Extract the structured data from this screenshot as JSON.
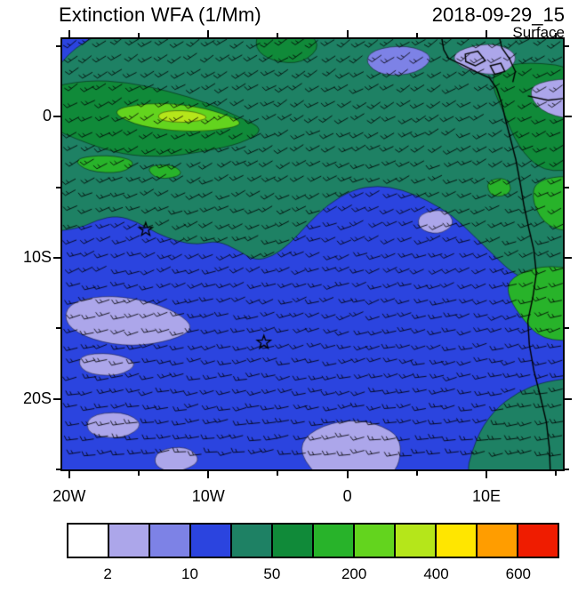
{
  "header": {
    "title": "Extinction WFA (1/Mm)",
    "datetime": "2018-09-29_15",
    "level": "Surface"
  },
  "chart_data": {
    "type": "filled_contour_map",
    "title": "Extinction WFA (1/Mm)",
    "datetime": "2018-09-29_15",
    "level": "Surface",
    "variable": "Extinction WFA",
    "units": "1/Mm",
    "geo": {
      "lon_min": -20.5,
      "lon_max": 15.5,
      "lat_min": -25,
      "lat_max": 5.5
    },
    "axes": {
      "x_ticks": [
        {
          "label": "20W",
          "lon": -20
        },
        {
          "label": "10W",
          "lon": -10
        },
        {
          "label": "0",
          "lon": 0
        },
        {
          "label": "10E",
          "lon": 10
        }
      ],
      "x_minor_lons": [
        -15,
        -5,
        5,
        15
      ],
      "y_ticks": [
        {
          "label": "0",
          "lat": 0
        },
        {
          "label": "10S",
          "lat": -10
        },
        {
          "label": "20S",
          "lat": -20
        }
      ],
      "y_minor_lats": [
        5,
        -5,
        -15,
        -25
      ]
    },
    "palette": [
      "#ffffff",
      "#aca6ea",
      "#7d82e6",
      "#2b44df",
      "#1e8164",
      "#108a39",
      "#28b32a",
      "#63d41e",
      "#b5e61a",
      "#ffe600",
      "#ff9d00",
      "#ef1c00"
    ],
    "background_color": 3,
    "colorbar": {
      "colors": [
        "#ffffff",
        "#aca6ea",
        "#7d82e6",
        "#2b44df",
        "#1e8164",
        "#108a39",
        "#28b32a",
        "#63d41e",
        "#b5e61a",
        "#ffe600",
        "#ff9d00",
        "#ef1c00"
      ],
      "labels": [
        {
          "text": "2",
          "boundary": 1
        },
        {
          "text": "10",
          "boundary": 3
        },
        {
          "text": "50",
          "boundary": 5
        },
        {
          "text": "200",
          "boundary": 7
        },
        {
          "text": "400",
          "boundary": 9
        },
        {
          "text": "600",
          "boundary": 11
        }
      ]
    },
    "field_regions": [
      {
        "name": "teal-north-band",
        "color": 4,
        "pts": [
          [
            -0.04,
            -0.04
          ],
          [
            0.5,
            -0.04
          ],
          [
            1.04,
            -0.04
          ],
          [
            1.04,
            0.12
          ],
          [
            0.98,
            0.16
          ],
          [
            1.04,
            0.28
          ],
          [
            1.04,
            0.57
          ],
          [
            0.95,
            0.57
          ],
          [
            0.9,
            0.545
          ],
          [
            0.86,
            0.5
          ],
          [
            0.82,
            0.455
          ],
          [
            0.78,
            0.41
          ],
          [
            0.73,
            0.375
          ],
          [
            0.68,
            0.35
          ],
          [
            0.63,
            0.34
          ],
          [
            0.58,
            0.35
          ],
          [
            0.53,
            0.385
          ],
          [
            0.49,
            0.43
          ],
          [
            0.455,
            0.475
          ],
          [
            0.42,
            0.505
          ],
          [
            0.385,
            0.515
          ],
          [
            0.35,
            0.49
          ],
          [
            0.31,
            0.468
          ],
          [
            0.27,
            0.478
          ],
          [
            0.23,
            0.47
          ],
          [
            0.19,
            0.452
          ],
          [
            0.15,
            0.425
          ],
          [
            0.11,
            0.41
          ],
          [
            0.07,
            0.42
          ],
          [
            0.035,
            0.44
          ],
          [
            -0.04,
            0.45
          ]
        ]
      },
      {
        "name": "teal-bottom-right",
        "color": 4,
        "pts": [
          [
            0.8,
            1.04
          ],
          [
            0.825,
            0.93
          ],
          [
            0.86,
            0.865
          ],
          [
            0.91,
            0.82
          ],
          [
            0.965,
            0.795
          ],
          [
            1.04,
            0.785
          ],
          [
            1.04,
            1.04
          ]
        ]
      },
      {
        "name": "green-topleft",
        "color": 5,
        "pts": [
          [
            -0.04,
            0.115
          ],
          [
            0.05,
            0.095
          ],
          [
            0.13,
            0.1
          ],
          [
            0.21,
            0.12
          ],
          [
            0.29,
            0.148
          ],
          [
            0.355,
            0.182
          ],
          [
            0.405,
            0.21
          ],
          [
            0.36,
            0.242
          ],
          [
            0.28,
            0.262
          ],
          [
            0.2,
            0.275
          ],
          [
            0.12,
            0.268
          ],
          [
            0.05,
            0.243
          ],
          [
            -0.04,
            0.198
          ]
        ]
      },
      {
        "name": "bright-green-streak",
        "color": 7,
        "pts": [
          [
            0.095,
            0.165
          ],
          [
            0.17,
            0.148
          ],
          [
            0.25,
            0.152
          ],
          [
            0.32,
            0.172
          ],
          [
            0.368,
            0.198
          ],
          [
            0.3,
            0.214
          ],
          [
            0.22,
            0.214
          ],
          [
            0.14,
            0.198
          ]
        ]
      },
      {
        "name": "streak-core",
        "color": 8,
        "pts": [
          [
            0.195,
            0.168
          ],
          [
            0.255,
            0.165
          ],
          [
            0.3,
            0.183
          ],
          [
            0.245,
            0.196
          ],
          [
            0.19,
            0.188
          ]
        ]
      },
      {
        "name": "green-patch-a",
        "color": 6,
        "pts": [
          [
            0.02,
            0.278
          ],
          [
            0.09,
            0.268
          ],
          [
            0.15,
            0.283
          ],
          [
            0.122,
            0.312
          ],
          [
            0.05,
            0.308
          ]
        ]
      },
      {
        "name": "green-patch-b",
        "color": 6,
        "pts": [
          [
            0.165,
            0.296
          ],
          [
            0.22,
            0.29
          ],
          [
            0.245,
            0.316
          ],
          [
            0.19,
            0.328
          ]
        ]
      },
      {
        "name": "green-top-center",
        "color": 5,
        "pts": [
          [
            0.395,
            -0.03
          ],
          [
            0.47,
            -0.03
          ],
          [
            0.52,
            0.012
          ],
          [
            0.48,
            0.057
          ],
          [
            0.42,
            0.052
          ],
          [
            0.383,
            0.022
          ]
        ]
      },
      {
        "name": "green-coast-north",
        "color": 5,
        "pts": [
          [
            0.865,
            0.068
          ],
          [
            0.93,
            0.052
          ],
          [
            1.04,
            0.068
          ],
          [
            1.04,
            0.3
          ],
          [
            0.96,
            0.31
          ],
          [
            0.91,
            0.25
          ],
          [
            0.882,
            0.17
          ],
          [
            0.858,
            0.11
          ]
        ]
      },
      {
        "name": "green-coast-mid",
        "color": 6,
        "pts": [
          [
            0.945,
            0.325
          ],
          [
            1.04,
            0.315
          ],
          [
            1.04,
            0.45
          ],
          [
            0.97,
            0.44
          ],
          [
            0.938,
            0.38
          ]
        ]
      },
      {
        "name": "green-coast-south",
        "color": 6,
        "pts": [
          [
            0.895,
            0.555
          ],
          [
            0.955,
            0.525
          ],
          [
            1.04,
            0.535
          ],
          [
            1.04,
            0.7
          ],
          [
            0.958,
            0.7
          ],
          [
            0.912,
            0.64
          ],
          [
            0.888,
            0.59
          ]
        ]
      },
      {
        "name": "green-spot",
        "color": 6,
        "pts": [
          [
            0.845,
            0.33
          ],
          [
            0.888,
            0.32
          ],
          [
            0.9,
            0.358
          ],
          [
            0.858,
            0.37
          ]
        ]
      },
      {
        "name": "lavender-lowerleft-a",
        "color": 1,
        "pts": [
          [
            0.01,
            0.615
          ],
          [
            0.08,
            0.595
          ],
          [
            0.16,
            0.605
          ],
          [
            0.23,
            0.635
          ],
          [
            0.265,
            0.672
          ],
          [
            0.22,
            0.7
          ],
          [
            0.14,
            0.715
          ],
          [
            0.06,
            0.7
          ],
          [
            0.005,
            0.664
          ]
        ]
      },
      {
        "name": "lavender-lowerleft-b",
        "color": 1,
        "pts": [
          [
            0.03,
            0.735
          ],
          [
            0.1,
            0.728
          ],
          [
            0.155,
            0.753
          ],
          [
            0.112,
            0.785
          ],
          [
            0.04,
            0.776
          ]
        ]
      },
      {
        "name": "lavender-bottomleft",
        "color": 1,
        "pts": [
          [
            0.05,
            0.875
          ],
          [
            0.12,
            0.864
          ],
          [
            0.165,
            0.895
          ],
          [
            0.122,
            0.93
          ],
          [
            0.05,
            0.92
          ]
        ]
      },
      {
        "name": "lavender-bottomleft-2",
        "color": 1,
        "pts": [
          [
            0.19,
            0.955
          ],
          [
            0.25,
            0.945
          ],
          [
            0.28,
            0.982
          ],
          [
            0.225,
            1.01
          ],
          [
            0.182,
            0.992
          ]
        ]
      },
      {
        "name": "lavender-bottomcenter",
        "color": 1,
        "pts": [
          [
            0.49,
            0.915
          ],
          [
            0.555,
            0.885
          ],
          [
            0.625,
            0.89
          ],
          [
            0.683,
            0.93
          ],
          [
            0.662,
            1.03
          ],
          [
            0.52,
            1.03
          ],
          [
            0.472,
            0.962
          ]
        ]
      },
      {
        "name": "lavender-midright",
        "color": 1,
        "pts": [
          [
            0.713,
            0.405
          ],
          [
            0.765,
            0.394
          ],
          [
            0.786,
            0.43
          ],
          [
            0.75,
            0.456
          ],
          [
            0.71,
            0.44
          ]
        ]
      },
      {
        "name": "periwinkle-topright-a",
        "color": 2,
        "pts": [
          [
            0.62,
            0.024
          ],
          [
            0.69,
            0.013
          ],
          [
            0.745,
            0.04
          ],
          [
            0.71,
            0.08
          ],
          [
            0.64,
            0.086
          ],
          [
            0.604,
            0.055
          ]
        ]
      },
      {
        "name": "lavender-topright-b",
        "color": 1,
        "pts": [
          [
            0.8,
            0.02
          ],
          [
            0.868,
            0.008
          ],
          [
            0.915,
            0.04
          ],
          [
            0.88,
            0.086
          ],
          [
            0.81,
            0.075
          ],
          [
            0.776,
            0.045
          ]
        ]
      },
      {
        "name": "lavender-topright-c",
        "color": 1,
        "pts": [
          [
            0.943,
            0.1
          ],
          [
            1.04,
            0.088
          ],
          [
            1.04,
            0.19
          ],
          [
            0.965,
            0.175
          ],
          [
            0.933,
            0.134
          ]
        ]
      }
    ],
    "coastlines": [
      {
        "name": "africa-west-coast",
        "closed": false,
        "pts": [
          [
            0.757,
            -0.01
          ],
          [
            0.762,
            0.025
          ],
          [
            0.772,
            0.045
          ],
          [
            0.8,
            0.06
          ],
          [
            0.825,
            0.075
          ],
          [
            0.853,
            0.09
          ],
          [
            0.868,
            0.115
          ],
          [
            0.878,
            0.15
          ],
          [
            0.886,
            0.19
          ],
          [
            0.895,
            0.23
          ],
          [
            0.906,
            0.28
          ],
          [
            0.914,
            0.33
          ],
          [
            0.922,
            0.385
          ],
          [
            0.932,
            0.44
          ],
          [
            0.942,
            0.49
          ],
          [
            0.947,
            0.545
          ],
          [
            0.94,
            0.6
          ],
          [
            0.93,
            0.655
          ],
          [
            0.933,
            0.71
          ],
          [
            0.942,
            0.77
          ],
          [
            0.955,
            0.83
          ],
          [
            0.967,
            0.89
          ],
          [
            0.973,
            0.95
          ],
          [
            0.975,
            1.01
          ]
        ]
      },
      {
        "name": "lake-1",
        "closed": true,
        "pts": [
          [
            0.805,
            0.035
          ],
          [
            0.83,
            0.028
          ],
          [
            0.845,
            0.05
          ],
          [
            0.825,
            0.062
          ],
          [
            0.806,
            0.052
          ]
        ]
      },
      {
        "name": "lake-2",
        "closed": true,
        "pts": [
          [
            0.855,
            0.062
          ],
          [
            0.876,
            0.056
          ],
          [
            0.884,
            0.075
          ],
          [
            0.864,
            0.082
          ]
        ]
      },
      {
        "name": "border-1",
        "closed": false,
        "pts": [
          [
            0.872,
            -0.01
          ],
          [
            0.878,
            0.02
          ],
          [
            0.893,
            0.045
          ],
          [
            0.905,
            0.075
          ],
          [
            0.9,
            0.1
          ]
        ]
      },
      {
        "name": "border-2",
        "closed": false,
        "pts": [
          [
            0.93,
            0.132
          ],
          [
            0.97,
            0.142
          ],
          [
            1.01,
            0.137
          ]
        ]
      }
    ],
    "wind_barbs": {
      "spacing": 17,
      "length": 13,
      "angle_top_deg": -34,
      "angle_bottom_deg": -8,
      "jitter_deg": 7
    },
    "markers": [
      {
        "type": "star",
        "lon": -14.5,
        "lat": -8
      },
      {
        "type": "star",
        "lon": -6,
        "lat": -16
      }
    ]
  }
}
